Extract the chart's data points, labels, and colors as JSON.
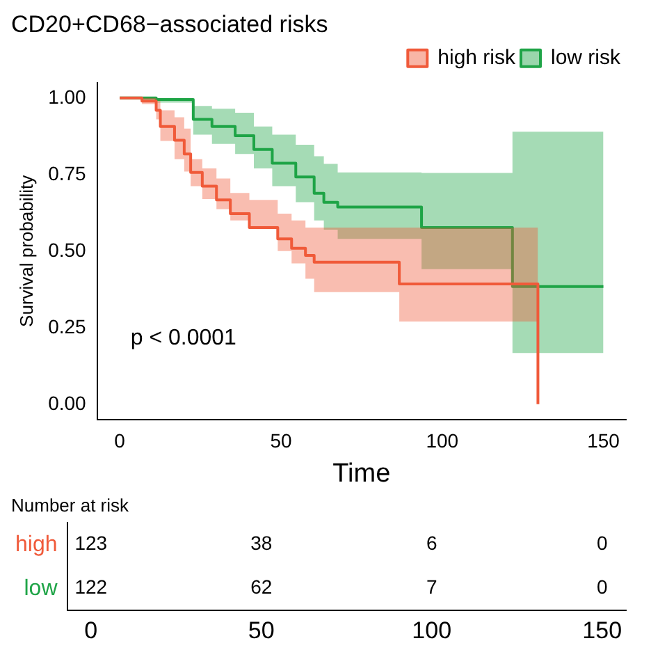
{
  "chart_data": [
    {
      "type": "step",
      "title": "CD20+CD68−associated risks",
      "xlabel": "Time",
      "ylabel": "Survival probability",
      "legend": "top right",
      "xlim": [
        -7,
        157
      ],
      "ylim": [
        -0.05,
        1.05
      ],
      "xticks": [
        0,
        50,
        100,
        150
      ],
      "yticks": [
        {
          "value": 0,
          "label": "0.00"
        },
        {
          "value": 0.25,
          "label": "0.25"
        },
        {
          "value": 0.5,
          "label": "0.50"
        },
        {
          "value": 0.75,
          "label": "0.75"
        },
        {
          "value": 1,
          "label": "1.00"
        }
      ],
      "annotations": [
        "p < 0.0001"
      ],
      "series": [
        {
          "name": "high risk",
          "color": "#f05a3a",
          "x": [
            0,
            6.9,
            11.3,
            12.6,
            17,
            20,
            22,
            25.6,
            30,
            34.3,
            40.2,
            49,
            53.3,
            57.6,
            60.3,
            86.7,
            129.7
          ],
          "values": [
            1,
            0.99,
            0.96,
            0.907,
            0.862,
            0.817,
            0.757,
            0.712,
            0.667,
            0.622,
            0.577,
            0.54,
            0.509,
            0.486,
            0.464,
            0.393,
            0
          ],
          "upper": [
            1,
            1,
            0.99,
            0.96,
            0.937,
            0.9,
            0.8,
            0.77,
            0.737,
            0.69,
            0.667,
            0.622,
            0.6,
            0.577,
            0.577,
            0.577,
            0.577
          ],
          "lower": [
            1,
            0.98,
            0.93,
            0.86,
            0.8,
            0.76,
            0.712,
            0.67,
            0.637,
            0.6,
            0.577,
            0.5,
            0.46,
            0.41,
            0.366,
            0.27,
            0.27
          ]
        },
        {
          "name": "low risk",
          "color": "#1fa447",
          "x": [
            0,
            11.3,
            22.8,
            28.6,
            35.8,
            41.6,
            47.3,
            54.6,
            60.3,
            63.3,
            67.6,
            93.6,
            121.8,
            150
          ],
          "values": [
            1,
            0.995,
            0.93,
            0.907,
            0.877,
            0.832,
            0.787,
            0.742,
            0.689,
            0.659,
            0.644,
            0.577,
            0.384,
            0.384
          ],
          "upper": [
            1,
            1,
            0.974,
            0.965,
            0.952,
            0.907,
            0.88,
            0.847,
            0.81,
            0.785,
            0.757,
            0.755,
            0.89,
            0.89
          ],
          "lower": [
            1,
            0.985,
            0.88,
            0.85,
            0.817,
            0.77,
            0.712,
            0.66,
            0.6,
            0.57,
            0.54,
            0.441,
            0.167,
            0.167
          ]
        }
      ]
    },
    {
      "type": "heatmap",
      "title": "Number at risk",
      "categories": [
        "0",
        "50",
        "100",
        "150"
      ],
      "y_categories": [
        "high",
        "low"
      ],
      "data_labels": true,
      "cells": [
        [
          123,
          38,
          6,
          0
        ],
        [
          122,
          62,
          7,
          0
        ]
      ]
    }
  ]
}
